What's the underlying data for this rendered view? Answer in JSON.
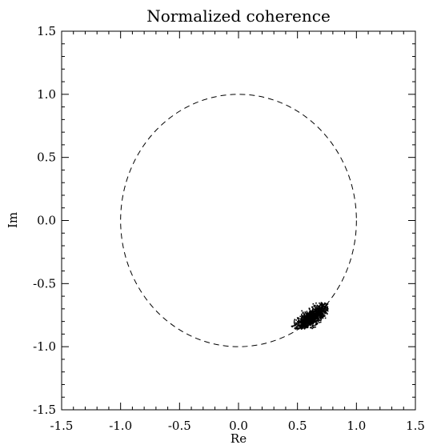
{
  "chart_data": {
    "type": "scatter",
    "title": "Normalized coherence",
    "xlabel": "Re",
    "ylabel": "Im",
    "xlim": [
      -1.5,
      1.5
    ],
    "ylim": [
      -1.5,
      1.5
    ],
    "xticks": [
      "-1.5",
      "-1.0",
      "-0.5",
      "0.0",
      "0.5",
      "1.0",
      "1.5"
    ],
    "yticks": [
      "1.5",
      "1.0",
      "0.5",
      "0.0",
      "-0.5",
      "-1.0",
      "-1.5"
    ],
    "grid": false,
    "reference_curve": {
      "shape": "unit-circle",
      "center": [
        0.0,
        0.0
      ],
      "radius": 1.0,
      "style": "dashed"
    },
    "point_cluster": {
      "center": [
        0.62,
        -0.77
      ],
      "extent_re": [
        0.45,
        0.76
      ],
      "extent_im": [
        -0.86,
        -0.65
      ],
      "orientation": "elongated along upper-right diagonal",
      "color": "#000000"
    }
  }
}
